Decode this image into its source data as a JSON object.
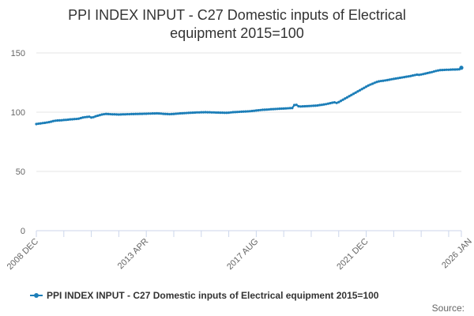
{
  "chart_data": {
    "type": "line",
    "title_lines": [
      "PPI INDEX INPUT - C27 Domestic inputs of Electrical",
      "equipment 2015=100"
    ],
    "xlabel": "",
    "ylabel": "",
    "ylim": [
      0,
      150
    ],
    "y_ticks": [
      0,
      50,
      100,
      150
    ],
    "x_tick_labels": [
      "2008 DEC",
      "2013 APR",
      "2017 AUG",
      "2021 DEC",
      "2026 JAN"
    ],
    "x_tick_indices": [
      0,
      52,
      104,
      156,
      205
    ],
    "grid": true,
    "legend_position": "bottom",
    "series": [
      {
        "name": "PPI INDEX INPUT - C27 Domestic inputs of Electrical equipment 2015=100",
        "color": "#1c7eb8",
        "start": "2008 DEC",
        "frequency": "monthly",
        "values": [
          90.0,
          90.3,
          90.5,
          90.8,
          91.0,
          91.3,
          91.6,
          92.0,
          92.5,
          92.8,
          93.0,
          93.1,
          93.2,
          93.4,
          93.5,
          93.7,
          93.9,
          94.0,
          94.2,
          94.3,
          94.5,
          95.0,
          95.5,
          95.8,
          96.0,
          96.2,
          95.5,
          95.8,
          96.5,
          97.0,
          97.5,
          98.0,
          98.3,
          98.5,
          98.4,
          98.3,
          98.2,
          98.2,
          98.1,
          98.0,
          98.1,
          98.2,
          98.2,
          98.3,
          98.3,
          98.4,
          98.4,
          98.5,
          98.5,
          98.6,
          98.6,
          98.7,
          98.7,
          98.8,
          98.8,
          98.9,
          98.9,
          99.0,
          98.9,
          98.8,
          98.6,
          98.5,
          98.4,
          98.3,
          98.4,
          98.5,
          98.7,
          98.8,
          99.0,
          99.1,
          99.2,
          99.3,
          99.4,
          99.5,
          99.6,
          99.7,
          99.8,
          99.8,
          99.9,
          99.9,
          100.0,
          99.9,
          99.9,
          99.8,
          99.8,
          99.7,
          99.7,
          99.6,
          99.6,
          99.5,
          99.5,
          99.6,
          99.8,
          100.0,
          100.1,
          100.2,
          100.3,
          100.4,
          100.5,
          100.6,
          100.7,
          100.8,
          101.0,
          101.2,
          101.4,
          101.6,
          101.8,
          102.0,
          102.1,
          102.2,
          102.3,
          102.5,
          102.6,
          102.7,
          102.8,
          102.9,
          103.0,
          103.1,
          103.2,
          103.3,
          103.4,
          103.5,
          106.0,
          106.2,
          105.0,
          104.8,
          104.9,
          105.0,
          105.1,
          105.2,
          105.3,
          105.4,
          105.5,
          105.7,
          106.0,
          106.2,
          106.5,
          106.8,
          107.2,
          107.6,
          108.0,
          108.3,
          107.8,
          108.5,
          109.5,
          110.5,
          111.5,
          112.5,
          113.5,
          114.5,
          115.5,
          116.5,
          117.5,
          118.5,
          119.5,
          120.5,
          121.5,
          122.5,
          123.3,
          124.0,
          124.8,
          125.5,
          126.0,
          126.3,
          126.5,
          126.8,
          127.1,
          127.4,
          127.8,
          128.1,
          128.4,
          128.7,
          129.0,
          129.3,
          129.6,
          129.9,
          130.2,
          130.5,
          130.9,
          131.3,
          131.7,
          131.5,
          131.8,
          132.2,
          132.6,
          133.0,
          133.4,
          133.8,
          134.3,
          134.8,
          135.2,
          135.5,
          135.6,
          135.7,
          135.8,
          135.8,
          135.9,
          136.0,
          136.0,
          136.1,
          136.2,
          137.5
        ]
      }
    ],
    "legend_label": "PPI INDEX INPUT - C27 Domestic inputs of Electrical equipment 2015=100",
    "source_label": "Source:"
  },
  "colors": {
    "series": "#1c7eb8",
    "grid": "#e6e6e6",
    "axis": "#ccd6eb"
  }
}
